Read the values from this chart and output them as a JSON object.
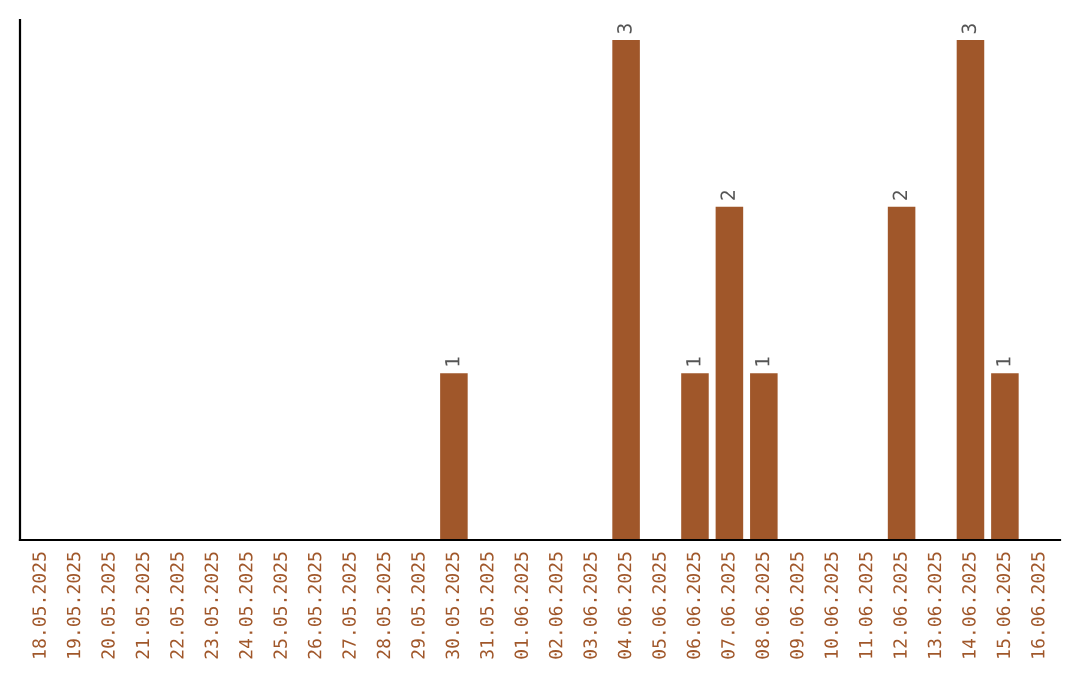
{
  "chart_data": {
    "type": "bar",
    "categories": [
      "18.05.2025",
      "19.05.2025",
      "20.05.2025",
      "21.05.2025",
      "22.05.2025",
      "23.05.2025",
      "24.05.2025",
      "25.05.2025",
      "26.05.2025",
      "27.05.2025",
      "28.05.2025",
      "29.05.2025",
      "30.05.2025",
      "31.05.2025",
      "01.06.2025",
      "02.06.2025",
      "03.06.2025",
      "04.06.2025",
      "05.06.2025",
      "06.06.2025",
      "07.06.2025",
      "08.06.2025",
      "09.06.2025",
      "10.06.2025",
      "11.06.2025",
      "12.06.2025",
      "13.06.2025",
      "14.06.2025",
      "15.06.2025",
      "16.06.2025"
    ],
    "values": [
      null,
      null,
      null,
      null,
      null,
      null,
      null,
      null,
      null,
      null,
      null,
      null,
      1,
      null,
      null,
      null,
      null,
      3,
      null,
      1,
      2,
      1,
      null,
      null,
      null,
      2,
      null,
      3,
      1,
      null
    ],
    "data_labels": true,
    "color": "#a0572a",
    "tick_labels": "x",
    "grid": false,
    "legend": false
  }
}
